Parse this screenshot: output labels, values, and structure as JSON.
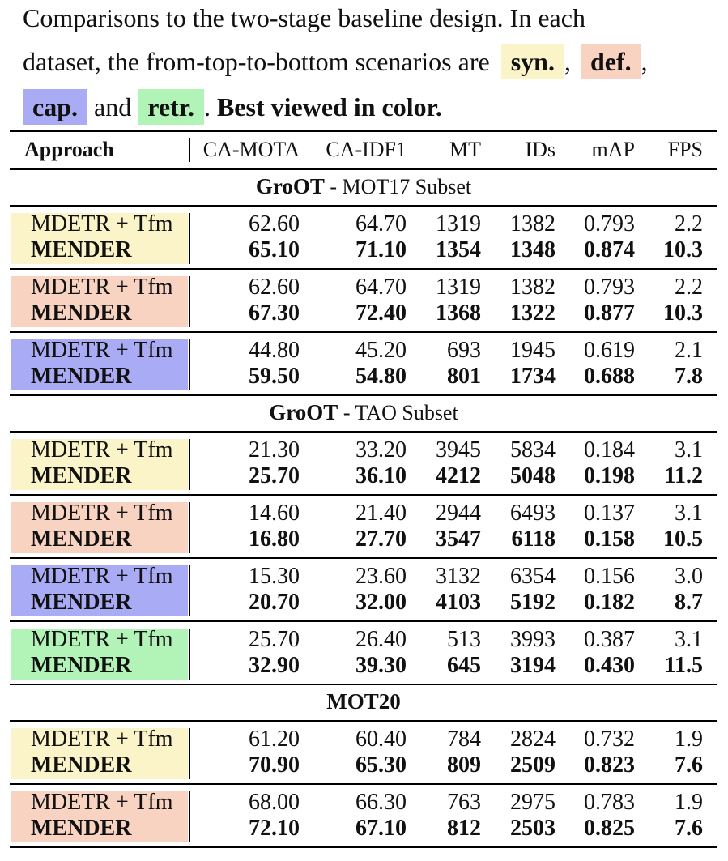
{
  "caption": {
    "line1": "Comparisons to the two-stage baseline design.  In each",
    "line2_pre": "dataset, the from-top-to-bottom scenarios are",
    "chip_syn": "syn.",
    "comma1": ",",
    "chip_def": "def.",
    "comma2": ",",
    "chip_cap": "cap.",
    "and": "and",
    "chip_retr": "retr.",
    "period": ".",
    "best": "Best viewed in color."
  },
  "colors": {
    "syn": "#fbf4c8",
    "def": "#f9d3c1",
    "cap": "#aaabf5",
    "retr": "#b2f3b7"
  },
  "table": {
    "headers": [
      "Approach",
      "CA-MOTA",
      "CA-IDF1",
      "MT",
      "IDs",
      "mAP",
      "FPS"
    ],
    "sections": [
      {
        "title_bold": "GroOT",
        "title_rest": " - MOT17 Subset",
        "groups": [
          {
            "scenario": "syn",
            "rows": [
              [
                "MDETR + Tfm",
                "62.60",
                "64.70",
                "1319",
                "1382",
                "0.793",
                "2.2"
              ],
              [
                "MENDER",
                "65.10",
                "71.10",
                "1354",
                "1348",
                "0.874",
                "10.3"
              ]
            ]
          },
          {
            "scenario": "def",
            "rows": [
              [
                "MDETR + Tfm",
                "62.60",
                "64.70",
                "1319",
                "1382",
                "0.793",
                "2.2"
              ],
              [
                "MENDER",
                "67.30",
                "72.40",
                "1368",
                "1322",
                "0.877",
                "10.3"
              ]
            ]
          },
          {
            "scenario": "cap",
            "rows": [
              [
                "MDETR + Tfm",
                "44.80",
                "45.20",
                "693",
                "1945",
                "0.619",
                "2.1"
              ],
              [
                "MENDER",
                "59.50",
                "54.80",
                "801",
                "1734",
                "0.688",
                "7.8"
              ]
            ]
          }
        ]
      },
      {
        "title_bold": "GroOT",
        "title_rest": " - TAO Subset",
        "groups": [
          {
            "scenario": "syn",
            "rows": [
              [
                "MDETR + Tfm",
                "21.30",
                "33.20",
                "3945",
                "5834",
                "0.184",
                "3.1"
              ],
              [
                "MENDER",
                "25.70",
                "36.10",
                "4212",
                "5048",
                "0.198",
                "11.2"
              ]
            ]
          },
          {
            "scenario": "def",
            "rows": [
              [
                "MDETR + Tfm",
                "14.60",
                "21.40",
                "2944",
                "6493",
                "0.137",
                "3.1"
              ],
              [
                "MENDER",
                "16.80",
                "27.70",
                "3547",
                "6118",
                "0.158",
                "10.5"
              ]
            ]
          },
          {
            "scenario": "cap",
            "rows": [
              [
                "MDETR + Tfm",
                "15.30",
                "23.60",
                "3132",
                "6354",
                "0.156",
                "3.0"
              ],
              [
                "MENDER",
                "20.70",
                "32.00",
                "4103",
                "5192",
                "0.182",
                "8.7"
              ]
            ]
          },
          {
            "scenario": "retr",
            "rows": [
              [
                "MDETR + Tfm",
                "25.70",
                "26.40",
                "513",
                "3993",
                "0.387",
                "3.1"
              ],
              [
                "MENDER",
                "32.90",
                "39.30",
                "645",
                "3194",
                "0.430",
                "11.5"
              ]
            ]
          }
        ]
      },
      {
        "title_bold": "MOT20",
        "title_rest": "",
        "groups": [
          {
            "scenario": "syn",
            "rows": [
              [
                "MDETR + Tfm",
                "61.20",
                "60.40",
                "784",
                "2824",
                "0.732",
                "1.9"
              ],
              [
                "MENDER",
                "70.90",
                "65.30",
                "809",
                "2509",
                "0.823",
                "7.6"
              ]
            ]
          },
          {
            "scenario": "def",
            "rows": [
              [
                "MDETR + Tfm",
                "68.00",
                "66.30",
                "763",
                "2975",
                "0.783",
                "1.9"
              ],
              [
                "MENDER",
                "72.10",
                "67.10",
                "812",
                "2503",
                "0.825",
                "7.6"
              ]
            ]
          }
        ]
      }
    ]
  }
}
